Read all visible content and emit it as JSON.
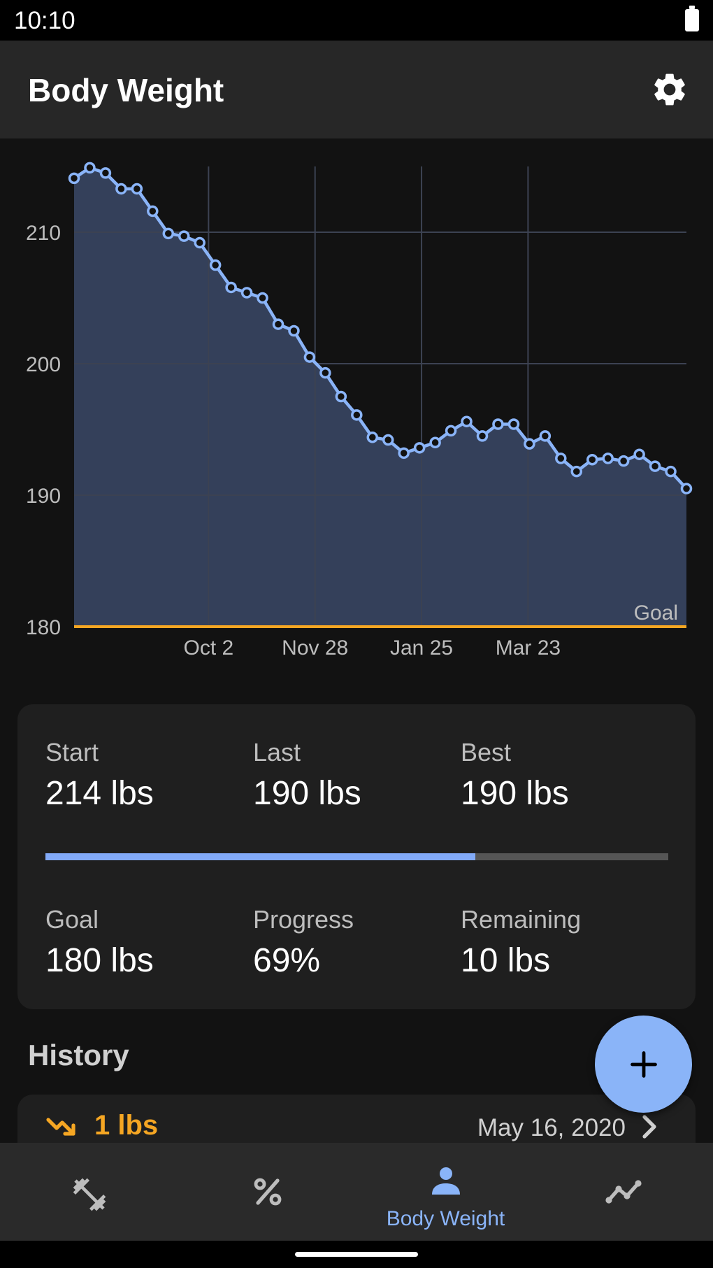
{
  "status_bar": {
    "time": "10:10"
  },
  "app_bar": {
    "title": "Body Weight",
    "settings_icon": "gear-icon"
  },
  "chart_data": {
    "type": "area",
    "y_ticks": [
      180,
      190,
      200,
      210
    ],
    "ylim": [
      180,
      215
    ],
    "x_ticks": [
      "Oct 2",
      "Nov 28",
      "Jan 25",
      "Mar 23"
    ],
    "goal": {
      "label": "Goal",
      "value": 180
    },
    "grid": true,
    "colors": {
      "line": "#8ab4f8",
      "fill": "#34405a",
      "goal": "#f5a623"
    },
    "series": [
      {
        "x": [
          0,
          1,
          2,
          3,
          4,
          5,
          6,
          7,
          8,
          9,
          10,
          11,
          12,
          13,
          14,
          15,
          16,
          17,
          18,
          19,
          20,
          21,
          22,
          23,
          24,
          25,
          26,
          27,
          28,
          29,
          30,
          31,
          32,
          33,
          34,
          35,
          36,
          37,
          38,
          39
        ],
        "values": [
          214.1,
          214.9,
          214.5,
          213.3,
          213.3,
          211.6,
          209.9,
          209.7,
          209.2,
          207.5,
          205.8,
          205.4,
          205.0,
          203.0,
          202.5,
          200.5,
          199.3,
          197.5,
          196.1,
          194.4,
          194.2,
          193.2,
          193.6,
          194.0,
          194.9,
          195.6,
          194.5,
          195.4,
          195.4,
          193.9,
          194.5,
          192.8,
          191.8,
          192.7,
          192.8,
          192.6,
          193.1,
          192.2,
          191.8,
          190.5
        ]
      }
    ]
  },
  "stats": {
    "start": {
      "label": "Start",
      "value": "214 lbs"
    },
    "last": {
      "label": "Last",
      "value": "190 lbs"
    },
    "best": {
      "label": "Best",
      "value": "190 lbs"
    },
    "progress_fraction": 0.69,
    "goal": {
      "label": "Goal",
      "value": "180 lbs"
    },
    "progress": {
      "label": "Progress",
      "value": "69%"
    },
    "remaining": {
      "label": "Remaining",
      "value": "10 lbs"
    }
  },
  "history": {
    "title": "History",
    "items": [
      {
        "delta": "1 lbs",
        "date": "May 16, 2020",
        "trend_icon": "trending-down-icon"
      }
    ]
  },
  "fab": {
    "icon": "plus-icon"
  },
  "bottom_nav": {
    "items": [
      {
        "icon": "dumbbell-icon",
        "label": ""
      },
      {
        "icon": "percent-icon",
        "label": ""
      },
      {
        "icon": "person-icon",
        "label": "Body Weight"
      },
      {
        "icon": "trend-chart-icon",
        "label": ""
      }
    ],
    "active_index": 2
  }
}
